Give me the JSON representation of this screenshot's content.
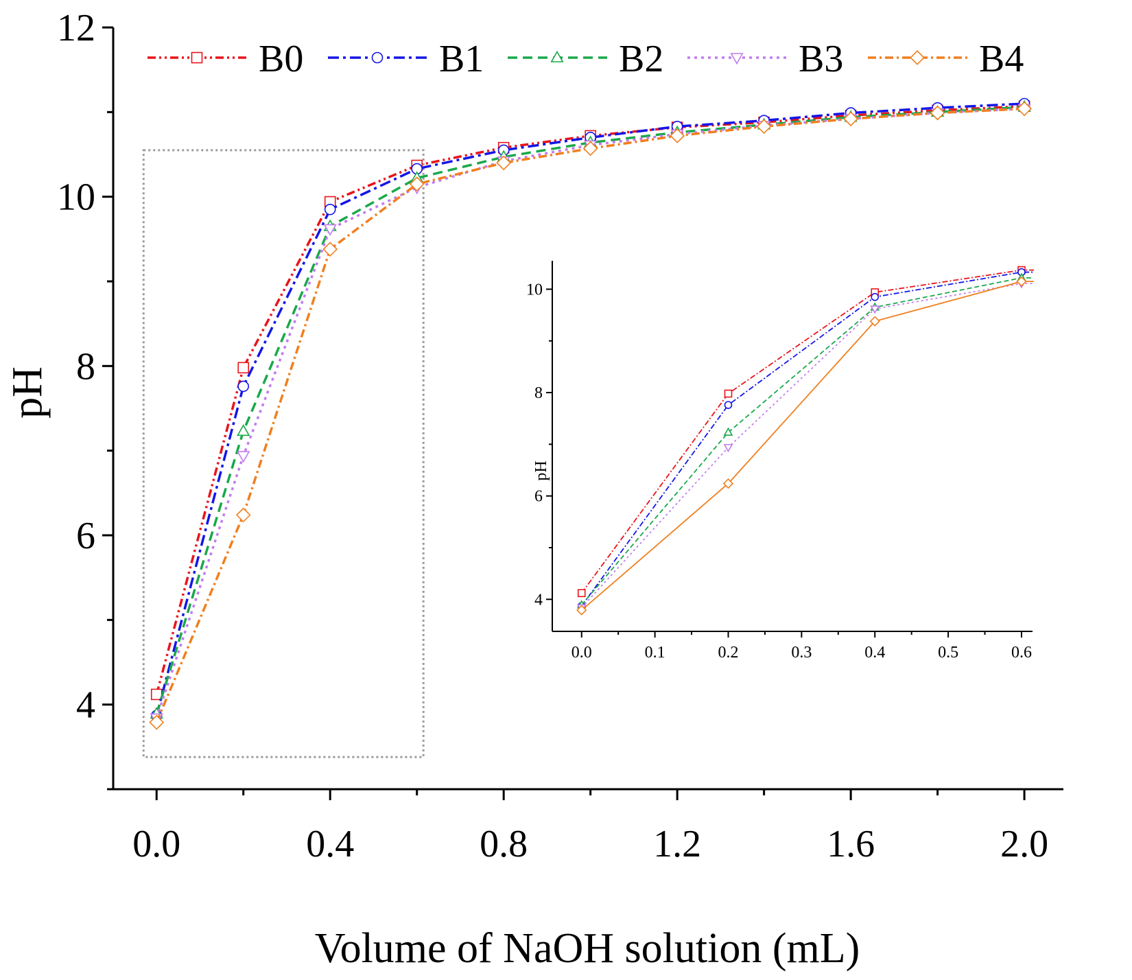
{
  "chart_data": [
    {
      "id": "main",
      "type": "line",
      "title": "",
      "xlabel": "Volume of NaOH solution (mL)",
      "ylabel": "pH",
      "xlim": [
        -0.1,
        2.09
      ],
      "ylim": [
        3.0,
        12.0
      ],
      "xticks": [
        "0.0",
        "0.4",
        "0.8",
        "1.2",
        "1.6",
        "2.0"
      ],
      "xtick_values": [
        0.0,
        0.4,
        0.8,
        1.2,
        1.6,
        2.0
      ],
      "yticks": [
        "4",
        "6",
        "8",
        "10",
        "12"
      ],
      "ytick_values": [
        4,
        6,
        8,
        10,
        12
      ],
      "legend_position": "top",
      "x": [
        0.0,
        0.2,
        0.4,
        0.6,
        0.8,
        1.0,
        1.2,
        1.4,
        1.6,
        1.8,
        2.0
      ],
      "series": [
        {
          "name": "B0",
          "color": "#e8141b",
          "marker": "square",
          "values": [
            4.12,
            7.98,
            9.94,
            10.37,
            10.58,
            10.72,
            10.82,
            10.88,
            10.96,
            11.02,
            11.07
          ]
        },
        {
          "name": "B1",
          "color": "#1416e6",
          "marker": "circle",
          "values": [
            3.87,
            7.76,
            9.85,
            10.33,
            10.55,
            10.7,
            10.83,
            10.9,
            10.99,
            11.05,
            11.1
          ]
        },
        {
          "name": "B2",
          "color": "#1aa84a",
          "marker": "triangle-up",
          "values": [
            3.89,
            7.23,
            9.65,
            10.22,
            10.47,
            10.64,
            10.76,
            10.85,
            10.94,
            11.0,
            11.06
          ]
        },
        {
          "name": "B3",
          "color": "#c27cef",
          "marker": "triangle-down",
          "values": [
            3.84,
            6.94,
            9.62,
            10.11,
            10.42,
            10.61,
            10.74,
            10.84,
            10.92,
            10.99,
            11.04
          ]
        },
        {
          "name": "B4",
          "color": "#f07f1e",
          "marker": "diamond",
          "values": [
            3.79,
            6.24,
            9.38,
            10.15,
            10.4,
            10.57,
            10.72,
            10.83,
            10.92,
            10.99,
            11.04
          ]
        }
      ]
    },
    {
      "id": "inset",
      "type": "line",
      "title": "",
      "xlabel": "",
      "ylabel": "pH",
      "xlim": [
        -0.04,
        0.615
      ],
      "ylim": [
        3.38,
        10.55
      ],
      "xticks": [
        "0.0",
        "0.1",
        "0.2",
        "0.3",
        "0.4",
        "0.5",
        "0.6"
      ],
      "xtick_values": [
        0.0,
        0.1,
        0.2,
        0.3,
        0.4,
        0.5,
        0.6
      ],
      "yticks": [
        "4",
        "6",
        "8",
        "10"
      ],
      "ytick_values": [
        4,
        6,
        8,
        10
      ],
      "x": [
        0.0,
        0.2,
        0.4,
        0.6
      ],
      "series": [
        {
          "name": "B0",
          "color": "#e8141b",
          "marker": "square",
          "values": [
            4.12,
            7.98,
            9.94,
            10.37
          ]
        },
        {
          "name": "B1",
          "color": "#1416e6",
          "marker": "circle",
          "values": [
            3.87,
            7.76,
            9.85,
            10.33
          ]
        },
        {
          "name": "B2",
          "color": "#1aa84a",
          "marker": "triangle-up",
          "values": [
            3.89,
            7.23,
            9.65,
            10.22
          ]
        },
        {
          "name": "B3",
          "color": "#c27cef",
          "marker": "triangle-down",
          "values": [
            3.84,
            6.94,
            9.62,
            10.11
          ]
        },
        {
          "name": "B4",
          "color": "#f07f1e",
          "marker": "diamond",
          "values": [
            3.79,
            6.24,
            9.38,
            10.15
          ]
        }
      ]
    }
  ]
}
